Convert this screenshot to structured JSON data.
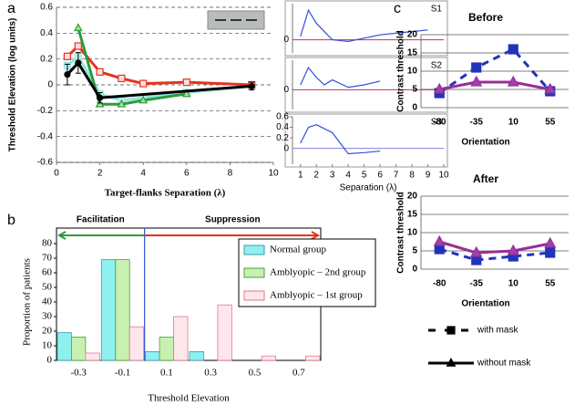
{
  "chart_data": [
    {
      "type": "line",
      "label": "a",
      "ylabel": "Threshold Elevation (log units)",
      "xlabel": "Target-flanks Separation (λ)",
      "xlim": [
        0,
        10
      ],
      "xticks": [
        0,
        2,
        4,
        6,
        8,
        10
      ],
      "ylim": [
        -0.6,
        0.6
      ],
      "yticks": [
        -0.6,
        -0.4,
        -0.2,
        0,
        0.2,
        0.4,
        0.6
      ],
      "grid": true,
      "series": [
        {
          "color": "#8fe8e0",
          "marker": "square",
          "marker_color": "#c0f4f0",
          "x": [
            0.5,
            1,
            2,
            3,
            4,
            6,
            9
          ],
          "values": [
            0.15,
            0.22,
            -0.07,
            -0.12,
            -0.1,
            -0.06,
            -0.01
          ]
        },
        {
          "color": "#e8321e",
          "marker": "square",
          "marker_color": "#fde0e0",
          "x": [
            0.5,
            1,
            2,
            3,
            4,
            6,
            9
          ],
          "values": [
            0.22,
            0.3,
            0.1,
            0.05,
            0.01,
            0.02,
            0
          ]
        },
        {
          "color": "#2e9a3a",
          "marker": "triangle",
          "marker_color": "#a8e0a0",
          "x": [
            1,
            2,
            3,
            4,
            6
          ],
          "values": [
            0.44,
            -0.15,
            -0.15,
            -0.12,
            -0.07
          ]
        },
        {
          "color": "#000000",
          "marker": "circle",
          "marker_color": "#000000",
          "x": [
            0.5,
            1,
            2,
            9
          ],
          "values": [
            0.08,
            0.17,
            -0.1,
            -0.01
          ],
          "errors": [
            0.08,
            0.08,
            0.04,
            0.03
          ]
        }
      ]
    },
    {
      "type": "line",
      "title": "S1",
      "xlim": [
        0.5,
        10
      ],
      "ylim": [
        -0.4,
        1.1
      ],
      "yticks": [
        0
      ],
      "baseline_color": "#c03060",
      "series": [
        {
          "color": "#3050d8",
          "x": [
            1,
            1.5,
            2,
            3,
            4,
            5,
            6,
            7,
            8,
            9
          ],
          "values": [
            0.1,
            0.9,
            0.5,
            0,
            -0.05,
            0.05,
            0.15,
            0.2,
            0.25,
            0.3
          ]
        }
      ]
    },
    {
      "type": "line",
      "title": "S2",
      "xlim": [
        0.5,
        10
      ],
      "ylim": [
        -0.8,
        1.2
      ],
      "yticks": [
        0
      ],
      "baseline_color": "#c03060",
      "series": [
        {
          "color": "#3050d8",
          "x": [
            1,
            1.5,
            2,
            2.5,
            3,
            4,
            5,
            6
          ],
          "values": [
            0.2,
            0.9,
            0.5,
            0.2,
            0.4,
            0.1,
            0.2,
            0.35
          ]
        }
      ]
    },
    {
      "type": "line",
      "title": "S3",
      "xlabel": "Separation (λ)",
      "xlim": [
        0.5,
        10
      ],
      "xticks": [
        1,
        2,
        3,
        4,
        5,
        6,
        7,
        8,
        9,
        10
      ],
      "ylim": [
        -0.3,
        0.6
      ],
      "yticks": [
        0,
        0.2,
        0.4,
        0.6
      ],
      "baseline_color": "#8080e0",
      "series": [
        {
          "color": "#3050d8",
          "x": [
            1,
            1.5,
            2,
            3,
            4,
            5,
            6
          ],
          "values": [
            0.1,
            0.4,
            0.45,
            0.3,
            -0.1,
            -0.08,
            -0.05
          ]
        }
      ]
    },
    {
      "type": "bar",
      "label": "b",
      "ylabel": "Proportion of patients",
      "xlabel": "Threshold Elevation",
      "annotations": [
        "Facilitation",
        "Suppression"
      ],
      "annotation_colors": [
        "#2e9a3a",
        "#e8321e"
      ],
      "categories": [
        "-0.3",
        "-0.1",
        "0.1",
        "0.3",
        "0.5",
        "0.7"
      ],
      "ylim": [
        0,
        80
      ],
      "yticks": [
        0,
        10,
        20,
        30,
        40,
        50,
        60,
        70,
        80
      ],
      "series": [
        {
          "name": "Normal group",
          "color": "#8ff0f0",
          "values": [
            19,
            69,
            6,
            6,
            0,
            0
          ]
        },
        {
          "name": "Amblyopic – 2nd group",
          "color": "#c8f0b0",
          "values": [
            16,
            69,
            16,
            0,
            0,
            0
          ]
        },
        {
          "name": "Amblyopic – 1st group",
          "color": "#fde6ec",
          "values": [
            5,
            23,
            30,
            38,
            3,
            3
          ]
        }
      ]
    },
    {
      "type": "line",
      "label": "c",
      "title": "Before",
      "ylabel": "Contrast threshold",
      "xlabel": "Orientation",
      "categories": [
        "-80",
        "-35",
        "10",
        "55"
      ],
      "ylim": [
        0,
        20
      ],
      "yticks": [
        0,
        5,
        10,
        15,
        20
      ],
      "grid": true,
      "series": [
        {
          "color": "#2233bb",
          "dash": true,
          "marker": "square",
          "marker_color": "#2233bb",
          "values": [
            4,
            11,
            16,
            4.5
          ]
        },
        {
          "color": "#992d99",
          "marker": "triangle",
          "marker_color": "#a040a8",
          "values": [
            5,
            7,
            7,
            5
          ]
        }
      ]
    },
    {
      "type": "line",
      "title": "After",
      "ylabel": "Contrast threshold",
      "xlabel": "Orientation",
      "categories": [
        "-80",
        "-35",
        "10",
        "55"
      ],
      "ylim": [
        0,
        20
      ],
      "yticks": [
        0,
        5,
        10,
        15,
        20
      ],
      "grid": true,
      "series": [
        {
          "name": "with mask",
          "color": "#2233bb",
          "dash": true,
          "marker": "square",
          "marker_color": "#2233bb",
          "values": [
            5.5,
            2.5,
            3.5,
            4.5
          ]
        },
        {
          "name": "without mask",
          "color": "#992d99",
          "marker": "triangle",
          "marker_color": "#a040a8",
          "values": [
            7.5,
            4.5,
            5,
            7
          ]
        }
      ]
    }
  ]
}
